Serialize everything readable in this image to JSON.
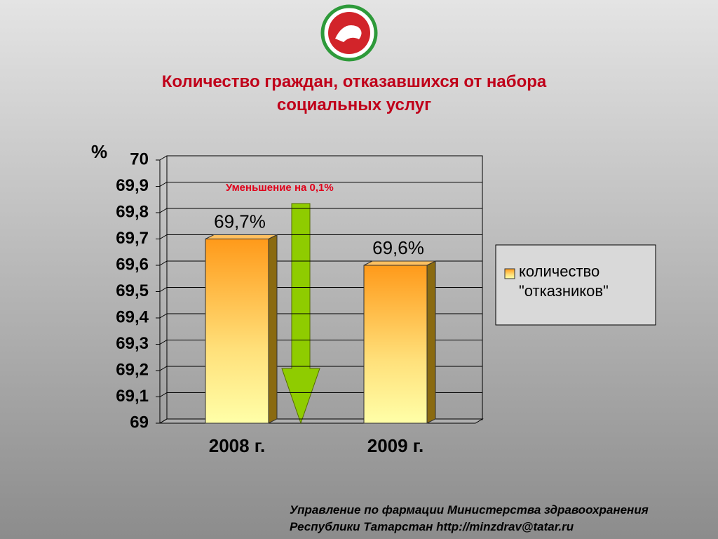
{
  "chart_data": {
    "type": "bar",
    "title": "Количество граждан, отказавшихся от набора социальных услуг",
    "y_label": "%",
    "annotation": "Уменьшение на 0,1%",
    "categories": [
      "2008 г.",
      "2009 г."
    ],
    "series": [
      {
        "name": "количество \"отказников\"",
        "color": "#ff9a1a",
        "values": [
          69.7,
          69.6
        ],
        "value_labels": [
          "69,7%",
          "69,6%"
        ]
      }
    ],
    "ylim": [
      69,
      70
    ],
    "yticks": [
      69,
      {
        "value": 69.1,
        "label": "69,1"
      },
      {
        "value": 69.2,
        "label": "69,2"
      },
      {
        "value": 69.3,
        "label": "69,3"
      },
      {
        "value": 69.4,
        "label": "69,4"
      },
      {
        "value": 69.5,
        "label": "69,5"
      },
      {
        "value": 69.6,
        "label": "69,6"
      },
      {
        "value": 69.7,
        "label": "69,7"
      },
      {
        "value": 69.8,
        "label": "69,8"
      },
      {
        "value": 69.9,
        "label": "69,9"
      },
      70
    ],
    "grid": true,
    "legend": "right"
  },
  "footer": [
    "Управление по фармации Министерства здравоохранения",
    "Республики Татарстан http://minzdrav@tatar.ru"
  ]
}
